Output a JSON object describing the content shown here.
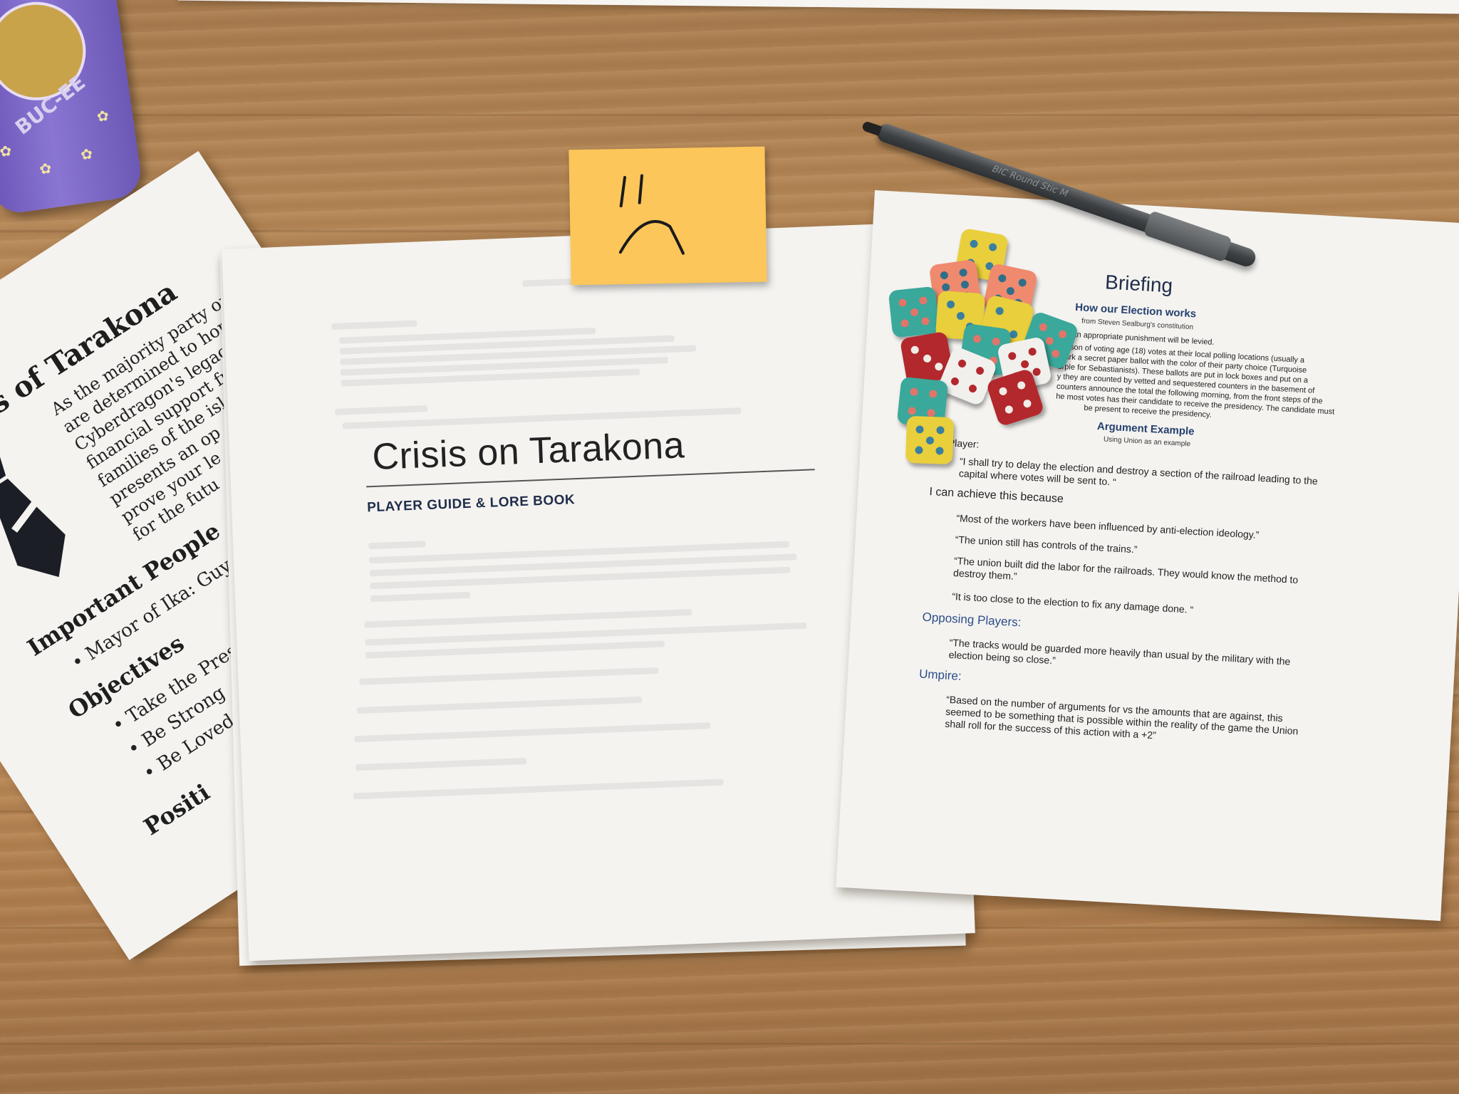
{
  "scene": {
    "description_tag": "tabletop game materials",
    "cup_text": "BUC-EE"
  },
  "sailors_sheet": {
    "title": "Sailors of Tarakona",
    "body_lines": [
      "As the majority party on T",
      "are determined to hono",
      "Cyberdragon's legacy",
      "financial support fr",
      "families of the isl",
      "presents an op",
      "prove your le",
      "for the futu"
    ],
    "important_people_heading": "Important People",
    "important_people": [
      "Mayor of Ika: Guy Ka"
    ],
    "objectives_heading": "Objectives",
    "objectives": [
      "Take the Presi",
      "Be Strong",
      "Be Loved"
    ],
    "positions_heading": "Positi"
  },
  "crisis_sheet": {
    "title": "Crisis on Tarakona",
    "subtitle": "PLAYER GUIDE & LORE BOOK"
  },
  "sticky_note": {
    "drawing": "sad-face"
  },
  "briefing_sheet": {
    "title": "Briefing",
    "section1_heading": "How our Election works",
    "section1_source": "from Steven Sealburg's constitution",
    "section1_line1": "ud, an appropriate punishment will be levied.",
    "section1_para": [
      "person of voting age (18) votes at their local polling locations (usually a",
      "mark a secret paper ballot with the color of their party choice (Turquoise",
      "urple for Sebastianists). These ballots are put in lock boxes and put on a",
      "y they are counted by vetted and sequestered counters in the basement of",
      "counters announce the total the following morning, from the front steps of the",
      "he most votes has their candidate to receive the presidency. The candidate must",
      "be present to receive the presidency."
    ],
    "section2_heading": "Argument Example",
    "section2_sub": "Using Union as an example",
    "role1": "ion Player:",
    "quote1": [
      "“I shall try to delay the election and destroy a section of the railroad leading to the",
      "capital where votes will be sent to. “"
    ],
    "role2": "I can achieve this because",
    "quote2": "“Most of the workers have been influenced by anti-election ideology.”",
    "quote3": "“The union still has controls of the trains.”",
    "quote4": [
      "“The union built did the labor for the railroads. They would know the method to",
      "destroy them.”"
    ],
    "quote5": "“It is too close to the election to fix any damage done. “",
    "role3": "Opposing Players:",
    "quote6": [
      "“The tracks would be guarded more heavily than usual by the military with the",
      "election being so close.”"
    ],
    "role4": "Umpire:",
    "quote7": [
      "“Based on the number of arguments for vs the amounts that are against, this",
      "seemed to be something that is possible within the reality of the game the Union",
      "shall roll for the success of this action with a +2”"
    ]
  },
  "pen": {
    "text": "BIC Round Stic M"
  },
  "dice_colors": {
    "yellow": "#e9cf3c",
    "coral": "#f08a6e",
    "teal": "#3aa89a",
    "red": "#b2282d",
    "white": "#f1f0ec"
  }
}
